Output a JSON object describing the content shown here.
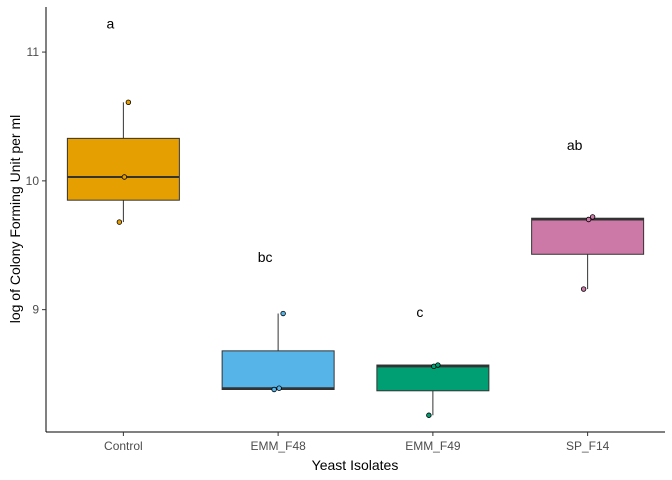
{
  "chart_data": {
    "type": "boxplot",
    "title": "",
    "xlabel": "Yeast Isolates",
    "ylabel": "log of Colony Forming Unit per ml",
    "ylim": [
      8.05,
      11.35
    ],
    "yticks": [
      9,
      10,
      11
    ],
    "ytick_labels": [
      "9",
      "10",
      "11"
    ],
    "grid": false,
    "legend": "none",
    "categories": [
      "Control",
      "EMM_F48",
      "EMM_F49",
      "SP_F14"
    ],
    "colors": [
      "#E69F00",
      "#56B4E9",
      "#009E73",
      "#CC79A7"
    ],
    "boxes": [
      {
        "category": "Control",
        "min": 9.68,
        "q1": 9.85,
        "median": 10.03,
        "q3": 10.33,
        "max": 10.61,
        "letter": "a",
        "letter_y": 11.22,
        "points": [
          9.68,
          10.03,
          10.61
        ]
      },
      {
        "category": "EMM_F48",
        "min": 8.38,
        "q1": 8.38,
        "median": 8.39,
        "q3": 8.68,
        "max": 8.97,
        "letter": "bc",
        "letter_y": 9.41,
        "points": [
          8.38,
          8.39,
          8.97
        ]
      },
      {
        "category": "EMM_F49",
        "min": 8.18,
        "q1": 8.37,
        "median": 8.56,
        "q3": 8.57,
        "max": 8.57,
        "letter": "c",
        "letter_y": 8.98,
        "points": [
          8.18,
          8.56,
          8.57
        ]
      },
      {
        "category": "SP_F14",
        "min": 9.16,
        "q1": 9.43,
        "median": 9.7,
        "q3": 9.71,
        "max": 9.72,
        "letter": "ab",
        "letter_y": 10.28,
        "points": [
          9.16,
          9.7,
          9.72
        ]
      }
    ]
  }
}
